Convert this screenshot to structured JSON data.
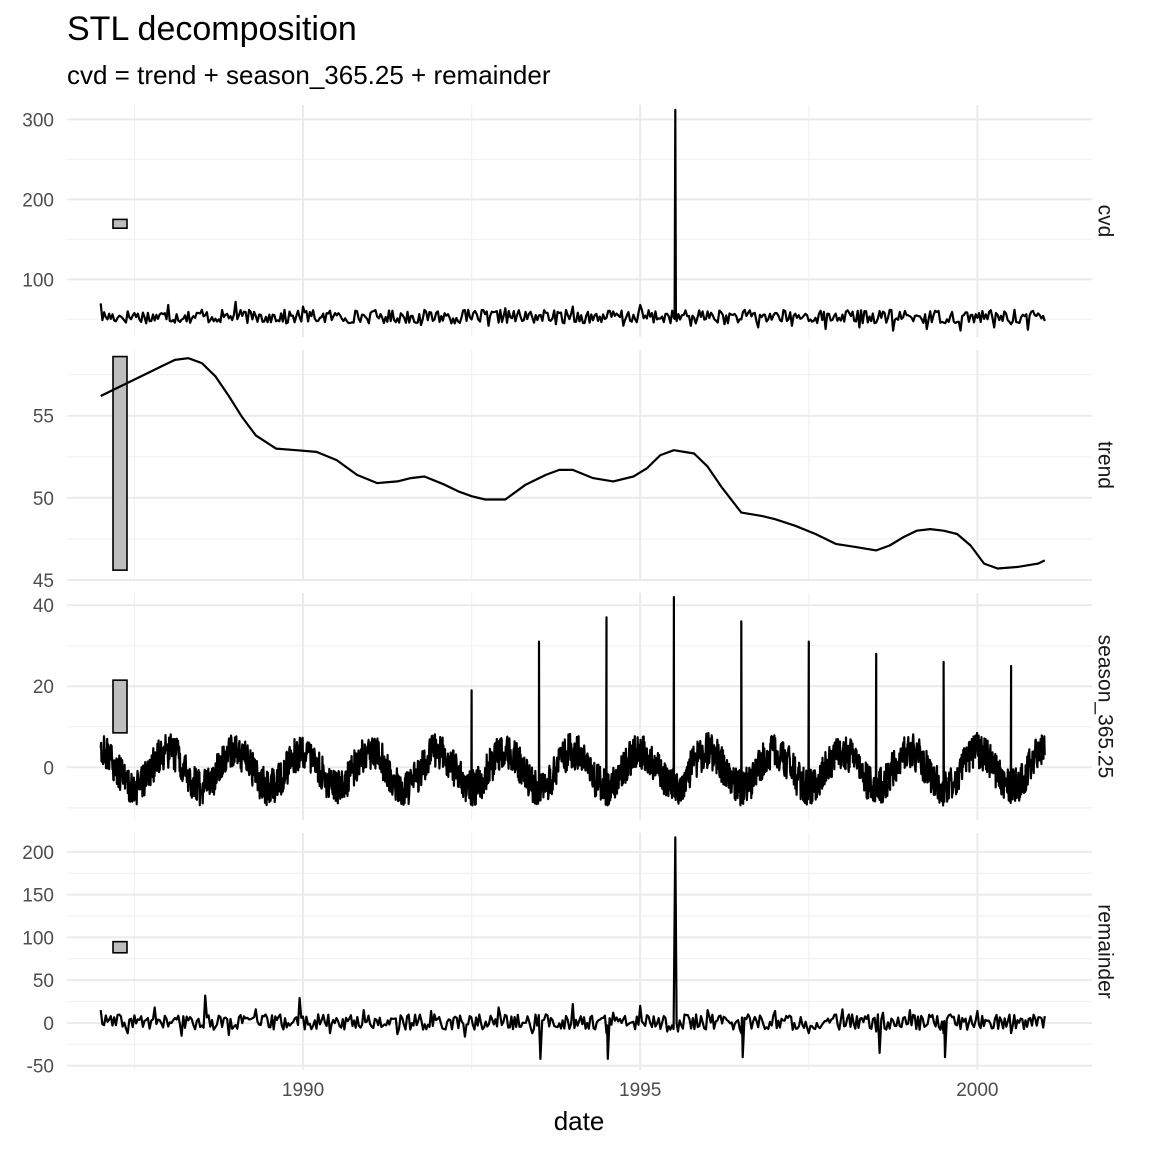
{
  "chart_data": {
    "type": "line",
    "title": "STL decomposition",
    "subtitle": "cvd = trend + season_365.25 + remainder",
    "xlabel": "date",
    "ylabel": "",
    "x_ticks": [
      "1990",
      "1995",
      "2000"
    ],
    "xlim": [
      1986.5,
      2001.7
    ],
    "grid": true,
    "panels": [
      {
        "name": "cvd",
        "ylim": [
          28,
          318
        ],
        "y_ticks": [
          100,
          200,
          300
        ],
        "scale_bar": [
          164,
          175
        ],
        "series": {
          "x": [
            1987.0,
            1987.25,
            1987.5,
            1987.75,
            1988.0,
            1988.25,
            1988.5,
            1988.75,
            1989.0,
            1989.25,
            1989.5,
            1989.75,
            1990.0,
            1990.25,
            1990.5,
            1990.75,
            1991.0,
            1991.25,
            1991.5,
            1991.75,
            1992.0,
            1992.25,
            1992.5,
            1992.75,
            1993.0,
            1993.25,
            1993.5,
            1993.75,
            1994.0,
            1994.25,
            1994.5,
            1994.75,
            1995.0,
            1995.25,
            1995.5,
            1995.52,
            1995.54,
            1995.75,
            1996.0,
            1996.25,
            1996.5,
            1996.75,
            1997.0,
            1997.25,
            1997.5,
            1997.75,
            1998.0,
            1998.25,
            1998.5,
            1998.75,
            1999.0,
            1999.25,
            1999.5,
            1999.75,
            2000.0,
            2000.25,
            2000.5,
            2000.75,
            2001.0
          ],
          "y": [
            70,
            52,
            58,
            48,
            68,
            55,
            62,
            50,
            72,
            50,
            56,
            45,
            66,
            52,
            55,
            46,
            58,
            47,
            52,
            43,
            60,
            45,
            50,
            42,
            64,
            48,
            55,
            44,
            66,
            46,
            52,
            42,
            68,
            50,
            52,
            312,
            48,
            42,
            60,
            44,
            50,
            40,
            58,
            42,
            48,
            38,
            56,
            40,
            46,
            36,
            54,
            38,
            46,
            36,
            52,
            40,
            44,
            37,
            48
          ]
        }
      },
      {
        "name": "trend",
        "ylim": [
          45,
          59
        ],
        "y_ticks": [
          45,
          50,
          55
        ],
        "scale_bar": [
          45.6,
          58.6
        ],
        "series": {
          "x": [
            1987.0,
            1987.3,
            1987.6,
            1987.9,
            1988.1,
            1988.3,
            1988.5,
            1988.7,
            1988.9,
            1989.1,
            1989.3,
            1989.6,
            1989.9,
            1990.2,
            1990.5,
            1990.8,
            1991.1,
            1991.4,
            1991.6,
            1991.8,
            1992.1,
            1992.3,
            1992.5,
            1992.7,
            1993.0,
            1993.3,
            1993.6,
            1993.8,
            1994.0,
            1994.3,
            1994.6,
            1994.9,
            1995.1,
            1995.3,
            1995.5,
            1995.8,
            1996.0,
            1996.2,
            1996.5,
            1996.8,
            1997.0,
            1997.3,
            1997.6,
            1997.9,
            1998.2,
            1998.5,
            1998.7,
            1998.9,
            1999.1,
            1999.3,
            1999.5,
            1999.7,
            1999.9,
            2000.1,
            2000.3,
            2000.6,
            2000.9,
            2001.0
          ],
          "y": [
            56.2,
            56.8,
            57.4,
            58.0,
            58.4,
            58.5,
            58.2,
            57.4,
            56.2,
            54.9,
            53.8,
            53.0,
            52.9,
            52.8,
            52.3,
            51.4,
            50.9,
            51.0,
            51.2,
            51.3,
            50.8,
            50.4,
            50.1,
            49.9,
            49.9,
            50.8,
            51.4,
            51.7,
            51.7,
            51.2,
            51.0,
            51.3,
            51.8,
            52.6,
            52.9,
            52.7,
            51.9,
            50.7,
            49.1,
            48.9,
            48.7,
            48.3,
            47.8,
            47.2,
            47.0,
            46.8,
            47.1,
            47.6,
            48.0,
            48.1,
            48.0,
            47.8,
            47.1,
            46.0,
            45.7,
            45.8,
            46.0,
            46.2
          ]
        }
      },
      {
        "name": "season_365.25",
        "ylim": [
          -13,
          43
        ],
        "y_ticks": [
          0,
          20,
          40
        ],
        "scale_bar": [
          8.5,
          21.5
        ],
        "spikes": {
          "x": [
            1992.5,
            1993.5,
            1994.5,
            1995.5,
            1996.5,
            1997.5,
            1998.5,
            1999.5,
            2000.5
          ],
          "y": [
            19,
            31,
            37,
            42,
            36,
            31,
            28,
            26,
            25
          ]
        }
      },
      {
        "name": "remainder",
        "ylim": [
          -55,
          222
        ],
        "y_ticks": [
          -50,
          0,
          50,
          100,
          150,
          200
        ],
        "scale_bar": [
          82,
          95
        ],
        "series": {
          "x": [
            1987.0,
            1987.4,
            1987.8,
            1988.2,
            1988.55,
            1988.9,
            1989.3,
            1989.95,
            1990.4,
            1990.9,
            1991.4,
            1991.9,
            1992.4,
            1992.9,
            1993.4,
            1993.52,
            1993.6,
            1994.0,
            1994.5,
            1994.52,
            1994.6,
            1995.0,
            1995.4,
            1995.52,
            1995.56,
            1996.0,
            1996.5,
            1996.52,
            1996.6,
            1997.0,
            1997.5,
            1998.0,
            1998.5,
            1998.55,
            1998.6,
            1999.0,
            1999.5,
            1999.52,
            1999.6,
            2000.0,
            2000.5,
            2001.0
          ],
          "y": [
            15,
            -12,
            18,
            -15,
            32,
            -14,
            16,
            29,
            -12,
            15,
            -13,
            14,
            -16,
            18,
            -12,
            -42,
            10,
            22,
            -12,
            -42,
            12,
            20,
            -10,
            217,
            -10,
            15,
            -12,
            -40,
            10,
            14,
            -12,
            16,
            -10,
            -35,
            12,
            15,
            -12,
            -40,
            10,
            14,
            -12,
            8
          ]
        }
      }
    ]
  }
}
